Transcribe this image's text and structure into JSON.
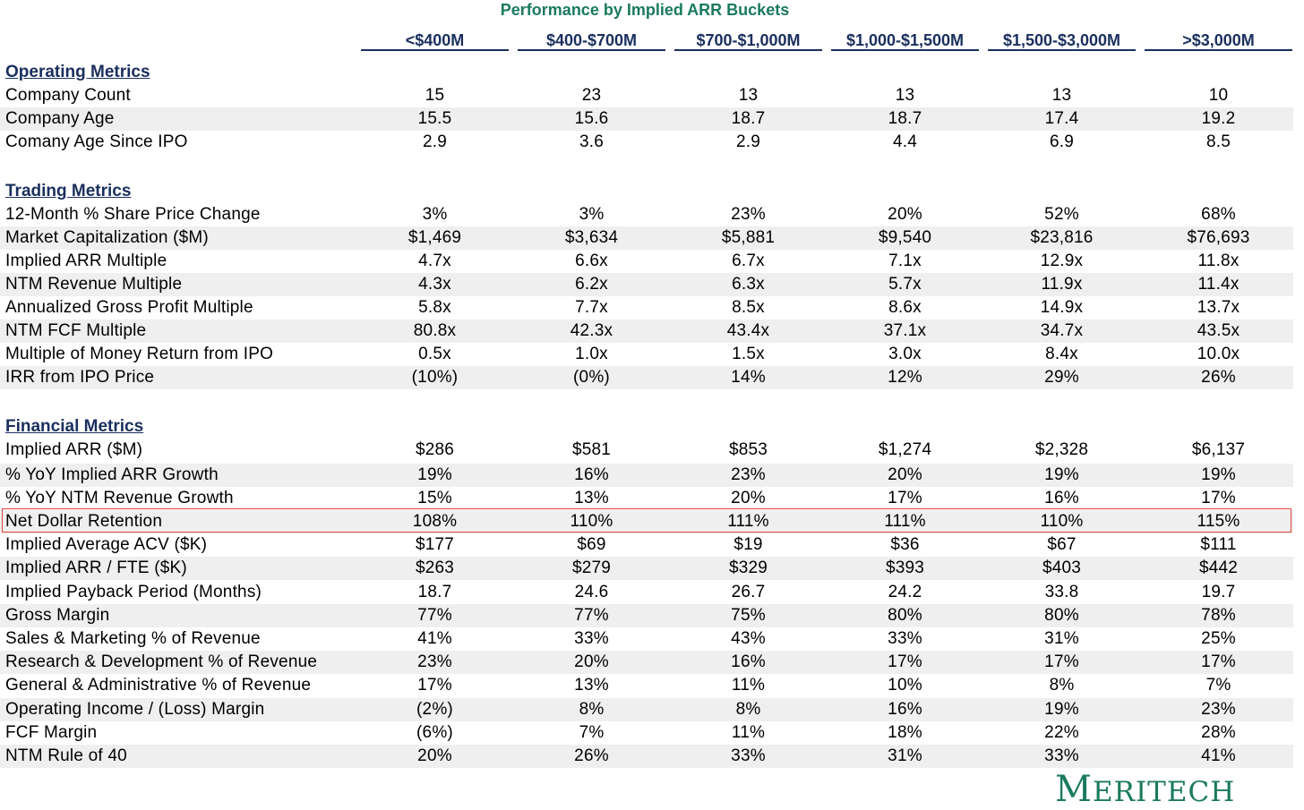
{
  "title": "Performance by Implied ARR Buckets",
  "columns": [
    "<$400M",
    "$400-$700M",
    "$700-$1,000M",
    "$1,000-$1,500M",
    "$1,500-$3,000M",
    ">$3,000M"
  ],
  "sections": {
    "operating": "Operating Metrics",
    "trading": "Trading Metrics",
    "financial": "Financial Metrics"
  },
  "rows": [
    {
      "label": "Company Count",
      "values": [
        "15",
        "23",
        "13",
        "13",
        "13",
        "10"
      ]
    },
    {
      "label": "Company Age",
      "values": [
        "15.5",
        "15.6",
        "18.7",
        "18.7",
        "17.4",
        "19.2"
      ]
    },
    {
      "label": "Comany Age Since IPO",
      "values": [
        "2.9",
        "3.6",
        "2.9",
        "4.4",
        "6.9",
        "8.5"
      ]
    },
    {
      "label": "12-Month % Share Price Change",
      "values": [
        "3%",
        "3%",
        "23%",
        "20%",
        "52%",
        "68%"
      ]
    },
    {
      "label": "Market Capitalization ($M)",
      "values": [
        "$1,469",
        "$3,634",
        "$5,881",
        "$9,540",
        "$23,816",
        "$76,693"
      ]
    },
    {
      "label": "Implied ARR Multiple",
      "values": [
        "4.7x",
        "6.6x",
        "6.7x",
        "7.1x",
        "12.9x",
        "11.8x"
      ]
    },
    {
      "label": "NTM Revenue Multiple",
      "values": [
        "4.3x",
        "6.2x",
        "6.3x",
        "5.7x",
        "11.9x",
        "11.4x"
      ]
    },
    {
      "label": "Annualized Gross Profit Multiple",
      "values": [
        "5.8x",
        "7.7x",
        "8.5x",
        "8.6x",
        "14.9x",
        "13.7x"
      ]
    },
    {
      "label": "NTM FCF Multiple",
      "values": [
        "80.8x",
        "42.3x",
        "43.4x",
        "37.1x",
        "34.7x",
        "43.5x"
      ]
    },
    {
      "label": "Multiple of Money Return from IPO",
      "values": [
        "0.5x",
        "1.0x",
        "1.5x",
        "3.0x",
        "8.4x",
        "10.0x"
      ]
    },
    {
      "label": "IRR from IPO Price",
      "values": [
        "(10%)",
        "(0%)",
        "14%",
        "12%",
        "29%",
        "26%"
      ]
    },
    {
      "label": "Implied ARR ($M)",
      "values": [
        "$286",
        "$581",
        "$853",
        "$1,274",
        "$2,328",
        "$6,137"
      ]
    },
    {
      "label": "% YoY Implied ARR Growth",
      "values": [
        "19%",
        "16%",
        "23%",
        "20%",
        "19%",
        "19%"
      ]
    },
    {
      "label": "% YoY NTM Revenue Growth",
      "values": [
        "15%",
        "13%",
        "20%",
        "17%",
        "16%",
        "17%"
      ]
    },
    {
      "label": "Net Dollar Retention",
      "values": [
        "108%",
        "110%",
        "111%",
        "111%",
        "110%",
        "115%"
      ]
    },
    {
      "label": "Implied Average ACV ($K)",
      "values": [
        "$177",
        "$69",
        "$19",
        "$36",
        "$67",
        "$111"
      ]
    },
    {
      "label": "Implied ARR / FTE ($K)",
      "values": [
        "$263",
        "$279",
        "$329",
        "$393",
        "$403",
        "$442"
      ]
    },
    {
      "label": "Implied Payback Period (Months)",
      "values": [
        "18.7",
        "24.6",
        "26.7",
        "24.2",
        "33.8",
        "19.7"
      ]
    },
    {
      "label": "Gross Margin",
      "values": [
        "77%",
        "77%",
        "75%",
        "80%",
        "80%",
        "78%"
      ]
    },
    {
      "label": "Sales & Marketing % of Revenue",
      "values": [
        "41%",
        "33%",
        "43%",
        "33%",
        "31%",
        "25%"
      ]
    },
    {
      "label": "Research & Development % of Revenue",
      "values": [
        "23%",
        "20%",
        "16%",
        "17%",
        "17%",
        "17%"
      ]
    },
    {
      "label": "General & Administrative % of Revenue",
      "values": [
        "17%",
        "13%",
        "11%",
        "10%",
        "8%",
        "7%"
      ]
    },
    {
      "label": "Operating Income / (Loss) Margin",
      "values": [
        "(2%)",
        "8%",
        "8%",
        "16%",
        "19%",
        "23%"
      ]
    },
    {
      "label": "FCF Margin",
      "values": [
        "(6%)",
        "7%",
        "11%",
        "18%",
        "22%",
        "28%"
      ]
    },
    {
      "label": "NTM Rule of 40",
      "values": [
        "20%",
        "26%",
        "33%",
        "31%",
        "33%",
        "41%"
      ]
    }
  ],
  "logo": "Meritech",
  "colors": {
    "title": "#1a7a5e",
    "header": "#1a2f5e",
    "shade": "#efefef",
    "highlight": "#e8433a",
    "logo": "#1a7a5e"
  }
}
